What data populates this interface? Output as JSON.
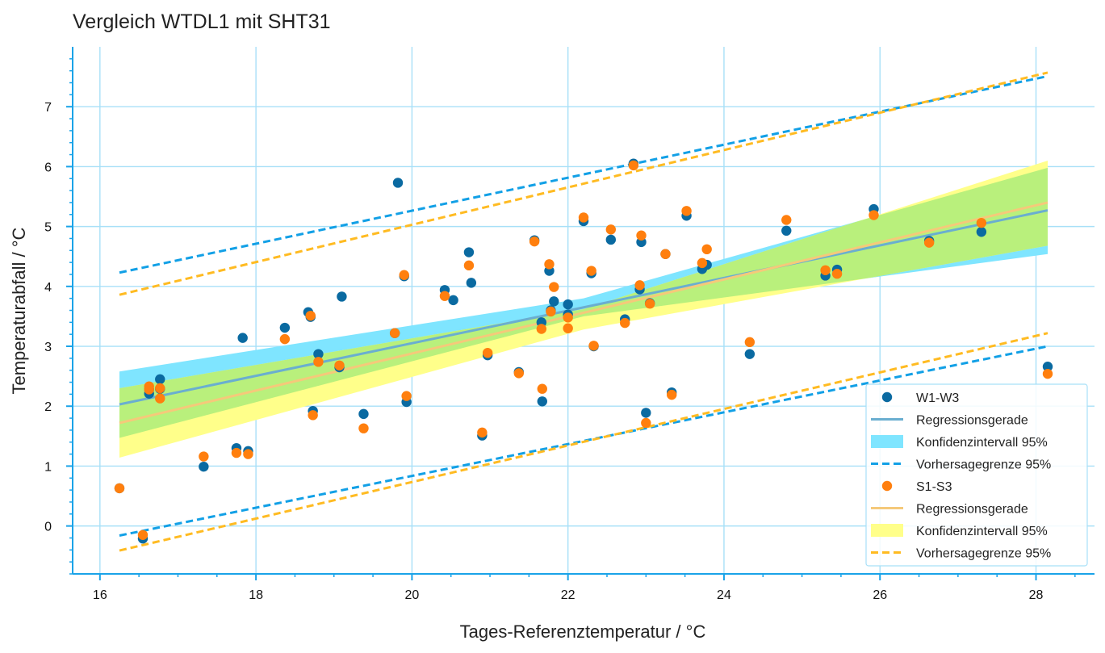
{
  "chart_data": {
    "type": "scatter",
    "title": "Vergleich WTDL1 mit SHT31",
    "xlabel": "Tages-Referenztemperatur / °C",
    "ylabel": "Temperaturabfall / °C",
    "xlim": [
      15.65,
      28.75
    ],
    "ylim": [
      -0.8,
      8.0
    ],
    "xticks": [
      16,
      18,
      20,
      22,
      24,
      26,
      28
    ],
    "yticks": [
      0,
      1,
      2,
      3,
      4,
      5,
      6,
      7
    ],
    "grid": true,
    "legend_position": "lower right",
    "colors": {
      "w_points": "#0a6aa1",
      "w_line": "#6aaed0",
      "w_ci": "#7fe5ff",
      "w_pred": "#12a0e6",
      "s_points": "#ff7f0e",
      "s_line": "#f5c97a",
      "s_ci": "#ffff8a",
      "s_pred": "#ffbb22",
      "overlap": "#b9f07c",
      "grid": "#a8e0f8",
      "axis": "#1aa3e8"
    },
    "series": [
      {
        "name": "W1-W3",
        "points": [
          [
            16.25,
            0.63
          ],
          [
            16.55,
            -0.21
          ],
          [
            16.63,
            2.21
          ],
          [
            16.63,
            2.28
          ],
          [
            16.77,
            2.45
          ],
          [
            16.77,
            2.29
          ],
          [
            17.33,
            0.99
          ],
          [
            17.75,
            1.3
          ],
          [
            17.83,
            3.14
          ],
          [
            17.9,
            1.25
          ],
          [
            18.37,
            3.31
          ],
          [
            18.67,
            3.57
          ],
          [
            18.7,
            3.49
          ],
          [
            18.73,
            1.92
          ],
          [
            18.8,
            2.87
          ],
          [
            19.07,
            2.65
          ],
          [
            19.1,
            3.83
          ],
          [
            19.38,
            1.87
          ],
          [
            19.78,
            3.22
          ],
          [
            19.82,
            5.73
          ],
          [
            19.9,
            4.17
          ],
          [
            19.93,
            2.07
          ],
          [
            20.42,
            3.94
          ],
          [
            20.53,
            3.77
          ],
          [
            20.73,
            4.57
          ],
          [
            20.76,
            4.06
          ],
          [
            20.9,
            1.51
          ],
          [
            20.97,
            2.85
          ],
          [
            21.37,
            2.57
          ],
          [
            21.57,
            4.77
          ],
          [
            21.66,
            3.4
          ],
          [
            21.67,
            2.08
          ],
          [
            21.76,
            4.26
          ],
          [
            21.78,
            3.6
          ],
          [
            21.82,
            3.75
          ],
          [
            22.0,
            3.7
          ],
          [
            22.0,
            3.53
          ],
          [
            22.2,
            5.09
          ],
          [
            22.3,
            4.22
          ],
          [
            22.33,
            3.0
          ],
          [
            22.55,
            4.78
          ],
          [
            22.73,
            3.45
          ],
          [
            22.84,
            6.05
          ],
          [
            22.92,
            3.95
          ],
          [
            22.94,
            4.74
          ],
          [
            23.0,
            1.89
          ],
          [
            23.05,
            3.72
          ],
          [
            23.25,
            4.54
          ],
          [
            23.33,
            2.23
          ],
          [
            23.52,
            5.18
          ],
          [
            23.72,
            4.29
          ],
          [
            23.78,
            4.36
          ],
          [
            24.33,
            2.87
          ],
          [
            24.8,
            4.93
          ],
          [
            25.3,
            4.18
          ],
          [
            25.45,
            4.28
          ],
          [
            25.92,
            5.29
          ],
          [
            26.63,
            4.76
          ],
          [
            27.3,
            4.91
          ],
          [
            28.15,
            2.66
          ]
        ],
        "regression": {
          "x": [
            16.25,
            28.15
          ],
          "y": [
            2.03,
            5.27
          ]
        },
        "ci_upper": {
          "x": [
            16.25,
            22.2,
            28.15
          ],
          "y": [
            2.58,
            3.8,
            5.98
          ]
        },
        "ci_lower": {
          "x": [
            16.25,
            22.2,
            28.15
          ],
          "y": [
            1.47,
            3.5,
            4.54
          ]
        },
        "pred_upper": {
          "x": [
            16.25,
            28.15
          ],
          "y": [
            4.23,
            7.51
          ]
        },
        "pred_lower": {
          "x": [
            16.25,
            28.15
          ],
          "y": [
            -0.16,
            3.0
          ]
        }
      },
      {
        "name": "S1-S3",
        "points": [
          [
            16.25,
            0.63
          ],
          [
            16.55,
            -0.15
          ],
          [
            16.63,
            2.33
          ],
          [
            16.63,
            2.28
          ],
          [
            16.77,
            2.3
          ],
          [
            16.77,
            2.13
          ],
          [
            17.33,
            1.16
          ],
          [
            17.75,
            1.22
          ],
          [
            17.9,
            1.2
          ],
          [
            18.37,
            3.12
          ],
          [
            18.7,
            3.51
          ],
          [
            18.73,
            1.85
          ],
          [
            18.8,
            2.74
          ],
          [
            19.07,
            2.68
          ],
          [
            19.38,
            1.63
          ],
          [
            19.78,
            3.22
          ],
          [
            19.9,
            4.19
          ],
          [
            19.93,
            2.17
          ],
          [
            20.42,
            3.84
          ],
          [
            20.73,
            4.35
          ],
          [
            20.9,
            1.56
          ],
          [
            20.97,
            2.89
          ],
          [
            21.37,
            2.55
          ],
          [
            21.57,
            4.75
          ],
          [
            21.66,
            3.29
          ],
          [
            21.67,
            2.29
          ],
          [
            21.76,
            4.37
          ],
          [
            21.78,
            3.58
          ],
          [
            21.82,
            3.99
          ],
          [
            22.0,
            3.3
          ],
          [
            22.0,
            3.48
          ],
          [
            22.2,
            5.15
          ],
          [
            22.3,
            4.26
          ],
          [
            22.33,
            3.01
          ],
          [
            22.55,
            4.95
          ],
          [
            22.73,
            3.39
          ],
          [
            22.84,
            6.02
          ],
          [
            22.92,
            4.02
          ],
          [
            22.94,
            4.85
          ],
          [
            23.0,
            1.72
          ],
          [
            23.05,
            3.71
          ],
          [
            23.25,
            4.54
          ],
          [
            23.33,
            2.19
          ],
          [
            23.52,
            5.26
          ],
          [
            23.72,
            4.39
          ],
          [
            23.78,
            4.62
          ],
          [
            24.33,
            3.07
          ],
          [
            24.8,
            5.11
          ],
          [
            25.3,
            4.27
          ],
          [
            25.45,
            4.21
          ],
          [
            25.92,
            5.19
          ],
          [
            26.63,
            4.73
          ],
          [
            27.3,
            5.06
          ],
          [
            28.15,
            2.54
          ]
        ],
        "regression": {
          "x": [
            16.25,
            28.15
          ],
          "y": [
            1.72,
            5.4
          ]
        },
        "ci_upper": {
          "x": [
            16.25,
            22.2,
            28.15
          ],
          "y": [
            2.3,
            3.62,
            6.1
          ]
        },
        "ci_lower": {
          "x": [
            16.25,
            22.2,
            28.15
          ],
          "y": [
            1.14,
            3.28,
            4.68
          ]
        },
        "pred_upper": {
          "x": [
            16.25,
            28.15
          ],
          "y": [
            3.86,
            7.57
          ]
        },
        "pred_lower": {
          "x": [
            16.25,
            28.15
          ],
          "y": [
            -0.41,
            3.22
          ]
        }
      }
    ],
    "legend": [
      {
        "label": "W1-W3",
        "kind": "point",
        "color_key": "w_points"
      },
      {
        "label": "Regressionsgerade",
        "kind": "line",
        "color_key": "w_line"
      },
      {
        "label": "Konfidenzintervall 95%",
        "kind": "patch",
        "color_key": "w_ci"
      },
      {
        "label": "Vorhersagegrenze 95%",
        "kind": "dashed",
        "color_key": "w_pred"
      },
      {
        "label": "S1-S3",
        "kind": "point",
        "color_key": "s_points"
      },
      {
        "label": "Regressionsgerade",
        "kind": "line",
        "color_key": "s_line"
      },
      {
        "label": "Konfidenzintervall 95%",
        "kind": "patch",
        "color_key": "s_ci"
      },
      {
        "label": "Vorhersagegrenze 95%",
        "kind": "dashed",
        "color_key": "s_pred"
      }
    ]
  }
}
